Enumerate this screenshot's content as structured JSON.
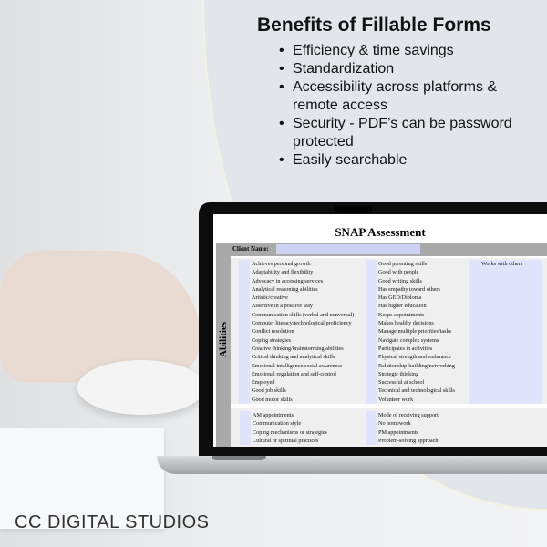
{
  "benefits": {
    "title": "Benefits of Fillable Forms",
    "items": [
      "Efficiency & time savings",
      "Standardization",
      "Accessibility across platforms & remote access",
      "Security - PDF’s can be password protected",
      "Easily searchable"
    ]
  },
  "form": {
    "title": "SNAP Assessment",
    "client_label": "Client Name:",
    "section_label": "Abilities",
    "abilities_col1": [
      "Achieves personal growth",
      "Adaptability and flexibility",
      "Advocacy in accessing services",
      "Analytical reasoning abilities",
      "Artistic/creative",
      "Assertive in a positive way",
      "Communication skills (verbal and nonverbal)",
      "Computer literacy/technological proficiency",
      "Conflict resolution",
      "Coping strategies",
      "Creative thinking/brainstorming abilities",
      "Critical thinking and analytical skills",
      "Emotional intelligence/social awareness",
      "Emotional regulation and self-control",
      "Employed",
      "Good job skills",
      "Good motor skills"
    ],
    "abilities_col2": [
      "Good parenting skills",
      "Good with people",
      "Good writing skills",
      "Has empathy toward others",
      "Has GED/Diploma",
      "Has higher education",
      "Keeps appointments",
      "Makes healthy decisions",
      "Manage multiple priorities/tasks",
      "Navigate complex systems",
      "Participates in activities",
      "Physical strength and endurance",
      "Relationship-building/networking",
      "Strategic thinking",
      "Successful at school",
      "Technical and technological skills",
      "Volunteer work"
    ],
    "abilities_col3": [
      "Works with others",
      "",
      "",
      "",
      "",
      "",
      "",
      "",
      "",
      "",
      "",
      "",
      "",
      "",
      "",
      "",
      ""
    ],
    "prefs_col1": [
      "AM appointments",
      "Communication style",
      "Coping mechanisms or strategies",
      "Cultural or spiritual practices"
    ],
    "prefs_col2": [
      "Mode of receiving support",
      "No homework",
      "PM appointments",
      "Problem-solving approach"
    ]
  },
  "brand": "CC DIGITAL STUDIOS"
}
